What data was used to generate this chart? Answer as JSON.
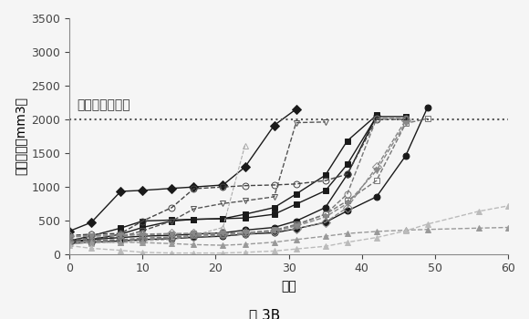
{
  "title": "図 3B",
  "xlabel": "日数",
  "ylabel": "腫風体積（mm3）",
  "endpoint_label": "エンドポイント",
  "endpoint_y": 2000,
  "xlim": [
    0,
    60
  ],
  "ylim": [
    0,
    3500
  ],
  "yticks": [
    0,
    500,
    1000,
    1500,
    2000,
    2500,
    3000,
    3500
  ],
  "xticks": [
    0,
    10,
    20,
    30,
    40,
    50,
    60
  ],
  "series": [
    {
      "name": "black_circle_solid_1",
      "color": "#1a1a1a",
      "linestyle": "-",
      "marker": "o",
      "fillstyle": "full",
      "markersize": 5,
      "lw": 1.0,
      "x": [
        0,
        3,
        7,
        10,
        14,
        17,
        21,
        24,
        28,
        31,
        35,
        38,
        42,
        46,
        49
      ],
      "y": [
        155,
        175,
        195,
        215,
        228,
        248,
        265,
        295,
        315,
        375,
        470,
        640,
        850,
        1460,
        2180
      ]
    },
    {
      "name": "black_circle_solid_2",
      "color": "#1a1a1a",
      "linestyle": "-",
      "marker": "o",
      "fillstyle": "full",
      "markersize": 5,
      "lw": 1.0,
      "x": [
        0,
        3,
        7,
        10,
        14,
        17,
        21,
        24,
        28,
        31,
        35,
        38,
        42
      ],
      "y": [
        195,
        215,
        245,
        265,
        278,
        295,
        315,
        355,
        395,
        490,
        690,
        1180,
        2050
      ]
    },
    {
      "name": "black_square_solid_1",
      "color": "#1a1a1a",
      "linestyle": "-",
      "marker": "s",
      "fillstyle": "full",
      "markersize": 5,
      "lw": 1.0,
      "x": [
        0,
        3,
        7,
        10,
        14,
        17,
        21,
        24,
        28,
        31,
        35,
        38,
        42
      ],
      "y": [
        165,
        215,
        295,
        395,
        490,
        515,
        525,
        590,
        690,
        890,
        1170,
        1680,
        2060
      ]
    },
    {
      "name": "black_square_solid_2",
      "color": "#1a1a1a",
      "linestyle": "-",
      "marker": "s",
      "fillstyle": "full",
      "markersize": 5,
      "lw": 1.0,
      "x": [
        0,
        3,
        7,
        10,
        14,
        17,
        21,
        24,
        28,
        31,
        35,
        38,
        42,
        46
      ],
      "y": [
        195,
        270,
        385,
        490,
        505,
        515,
        525,
        535,
        590,
        740,
        940,
        1330,
        2040,
        2040
      ]
    },
    {
      "name": "black_diamond_solid",
      "color": "#1a1a1a",
      "linestyle": "-",
      "marker": "D",
      "fillstyle": "full",
      "markersize": 5,
      "lw": 1.0,
      "x": [
        0,
        3,
        7,
        10,
        14,
        17,
        21,
        24,
        28,
        31
      ],
      "y": [
        340,
        470,
        930,
        945,
        975,
        995,
        1025,
        1290,
        1910,
        2150
      ]
    },
    {
      "name": "open_circle_dark",
      "color": "#444444",
      "linestyle": "--",
      "marker": "o",
      "fillstyle": "none",
      "markersize": 5,
      "lw": 1.0,
      "x": [
        0,
        3,
        7,
        10,
        14,
        17,
        21,
        24,
        28,
        31,
        35,
        38,
        42,
        46
      ],
      "y": [
        275,
        295,
        305,
        490,
        690,
        970,
        995,
        1015,
        1025,
        1040,
        1090,
        1185,
        2000,
        2000
      ]
    },
    {
      "name": "open_invtriangle_dark",
      "color": "#555555",
      "linestyle": "--",
      "marker": "v",
      "fillstyle": "none",
      "markersize": 5,
      "lw": 1.0,
      "x": [
        0,
        3,
        7,
        10,
        14,
        17,
        21,
        24,
        28,
        31,
        35
      ],
      "y": [
        215,
        235,
        255,
        345,
        490,
        670,
        750,
        790,
        850,
        1950,
        1960
      ]
    },
    {
      "name": "open_triangle_light",
      "color": "#aaaaaa",
      "linestyle": "--",
      "marker": "^",
      "fillstyle": "none",
      "markersize": 5,
      "lw": 0.8,
      "x": [
        0,
        3,
        7,
        10,
        14,
        17,
        21,
        24
      ],
      "y": [
        155,
        165,
        175,
        195,
        215,
        275,
        395,
        1610
      ]
    },
    {
      "name": "gray_circle_open",
      "color": "#777777",
      "linestyle": "--",
      "marker": "o",
      "fillstyle": "none",
      "markersize": 5,
      "lw": 1.0,
      "x": [
        0,
        3,
        7,
        10,
        14,
        17,
        21,
        24,
        28,
        31,
        35,
        38,
        42,
        46
      ],
      "y": [
        175,
        195,
        205,
        215,
        235,
        255,
        275,
        295,
        335,
        430,
        590,
        890,
        2010,
        2010
      ]
    },
    {
      "name": "gray_square_open",
      "color": "#777777",
      "linestyle": "--",
      "marker": "s",
      "fillstyle": "none",
      "markersize": 5,
      "lw": 1.0,
      "x": [
        0,
        3,
        7,
        10,
        14,
        17,
        21,
        24,
        28,
        31,
        35,
        38,
        42,
        46,
        49
      ],
      "y": [
        195,
        205,
        215,
        235,
        255,
        275,
        295,
        315,
        355,
        440,
        590,
        790,
        1090,
        1940,
        2010
      ]
    },
    {
      "name": "gray_diamond_open",
      "color": "#888888",
      "linestyle": "--",
      "marker": "D",
      "fillstyle": "none",
      "markersize": 5,
      "lw": 1.0,
      "x": [
        0,
        3,
        7,
        10,
        14,
        17,
        21,
        24,
        28,
        31,
        35,
        38,
        42,
        46
      ],
      "y": [
        265,
        275,
        285,
        295,
        305,
        305,
        305,
        315,
        335,
        375,
        470,
        690,
        1290,
        1990
      ]
    },
    {
      "name": "gray_invtriangle_filled",
      "color": "#888888",
      "linestyle": "--",
      "marker": "v",
      "fillstyle": "full",
      "markersize": 5,
      "lw": 1.0,
      "x": [
        0,
        3,
        7,
        10,
        14,
        17,
        21,
        24,
        28,
        31,
        35,
        38,
        42,
        46
      ],
      "y": [
        255,
        265,
        275,
        285,
        295,
        305,
        305,
        315,
        345,
        415,
        550,
        750,
        1240,
        1950
      ]
    },
    {
      "name": "light_triangle_filled_slow",
      "color": "#999999",
      "linestyle": "--",
      "marker": "^",
      "fillstyle": "full",
      "markersize": 5,
      "lw": 1.0,
      "x": [
        0,
        3,
        7,
        10,
        14,
        17,
        21,
        24,
        28,
        31,
        35,
        38,
        42,
        46,
        49,
        56,
        60
      ],
      "y": [
        175,
        175,
        175,
        170,
        155,
        140,
        130,
        145,
        175,
        215,
        265,
        305,
        335,
        355,
        365,
        385,
        395
      ]
    },
    {
      "name": "very_light_triangle_slow",
      "color": "#bbbbbb",
      "linestyle": "--",
      "marker": "^",
      "fillstyle": "full",
      "markersize": 5,
      "lw": 1.0,
      "x": [
        0,
        3,
        7,
        10,
        14,
        17,
        21,
        24,
        28,
        31,
        35,
        38,
        42,
        46,
        49,
        56,
        60
      ],
      "y": [
        125,
        85,
        55,
        25,
        15,
        15,
        15,
        25,
        45,
        75,
        115,
        175,
        245,
        345,
        445,
        635,
        715
      ]
    }
  ],
  "background_color": "#f5f5f5",
  "font_size_label": 10,
  "font_size_tick": 9,
  "font_size_title": 11,
  "font_size_annotation": 10
}
